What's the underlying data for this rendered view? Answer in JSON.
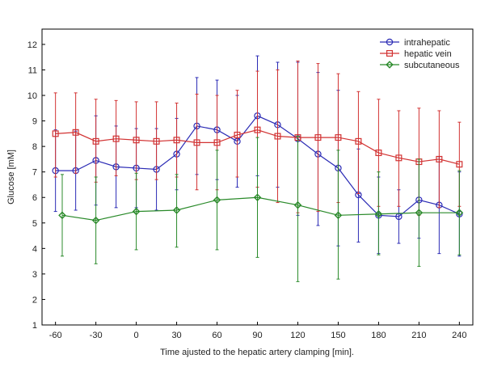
{
  "chart_data": {
    "type": "line",
    "title": "",
    "xlabel": "Time ajusted to the hepatic artery clamping [min].",
    "ylabel": "Glucose [mM]",
    "xlim": [
      -70,
      250
    ],
    "ylim": [
      1,
      12.6
    ],
    "xticks": [
      -60,
      -30,
      0,
      30,
      60,
      90,
      120,
      150,
      180,
      210,
      240
    ],
    "yticks": [
      1,
      2,
      3,
      4,
      5,
      6,
      7,
      8,
      9,
      10,
      11,
      12
    ],
    "grid": false,
    "legend_position": "top-right",
    "series": [
      {
        "name": "intrahepatic",
        "color": "#2b2bb5",
        "marker": "circle",
        "x": [
          -60,
          -45,
          -30,
          -15,
          0,
          15,
          30,
          45,
          60,
          75,
          90,
          105,
          120,
          135,
          150,
          165,
          180,
          195,
          210,
          225,
          240
        ],
        "y": [
          7.05,
          7.05,
          7.45,
          7.2,
          7.15,
          7.1,
          7.7,
          8.8,
          8.65,
          8.2,
          9.2,
          8.85,
          8.3,
          7.7,
          7.15,
          6.1,
          5.3,
          5.25,
          5.9,
          5.7,
          5.35
        ],
        "upper": [
          8.65,
          8.6,
          9.2,
          8.8,
          8.7,
          8.7,
          9.1,
          10.7,
          10.6,
          10.0,
          11.55,
          11.3,
          11.3,
          10.9,
          10.2,
          7.9,
          6.8,
          6.3,
          7.4,
          7.6,
          7.0
        ],
        "lower": [
          5.45,
          5.5,
          5.7,
          5.6,
          5.6,
          5.5,
          6.3,
          6.9,
          6.7,
          6.4,
          6.85,
          6.4,
          5.3,
          4.9,
          4.1,
          4.25,
          3.8,
          4.2,
          4.4,
          3.8,
          3.7
        ]
      },
      {
        "name": "hepatic vein",
        "color": "#d23232",
        "marker": "square",
        "x": [
          -60,
          -45,
          -30,
          -15,
          0,
          15,
          30,
          45,
          60,
          75,
          90,
          105,
          120,
          135,
          150,
          165,
          180,
          195,
          210,
          225,
          240
        ],
        "y": [
          8.5,
          8.55,
          8.2,
          8.3,
          8.25,
          8.2,
          8.25,
          8.15,
          8.15,
          8.45,
          8.65,
          8.4,
          8.35,
          8.35,
          8.35,
          8.2,
          7.75,
          7.55,
          7.4,
          7.5,
          7.3
        ],
        "upper": [
          10.1,
          10.1,
          9.85,
          9.8,
          9.75,
          9.75,
          9.7,
          10.05,
          10.0,
          10.2,
          10.95,
          11.0,
          11.35,
          11.25,
          10.85,
          10.15,
          9.85,
          9.4,
          9.5,
          9.4,
          8.95
        ],
        "lower": [
          6.8,
          6.95,
          6.6,
          6.85,
          6.7,
          6.7,
          6.8,
          6.3,
          6.3,
          6.8,
          6.4,
          5.8,
          5.4,
          5.45,
          5.8,
          6.15,
          5.65,
          5.65,
          5.3,
          5.6,
          5.65
        ]
      },
      {
        "name": "subcutaneous",
        "color": "#2a8a2a",
        "marker": "diamond",
        "x": [
          -55,
          -30,
          0,
          30,
          60,
          90,
          120,
          150,
          180,
          210,
          240
        ],
        "y": [
          5.3,
          5.1,
          5.45,
          5.5,
          5.9,
          6.0,
          5.7,
          5.3,
          5.35,
          5.4,
          5.4
        ],
        "upper": [
          6.9,
          6.8,
          6.95,
          6.9,
          7.85,
          8.35,
          8.4,
          7.85,
          7.0,
          7.5,
          7.05
        ],
        "lower": [
          3.7,
          3.4,
          3.95,
          4.05,
          3.95,
          3.65,
          2.7,
          2.8,
          3.75,
          3.3,
          3.75
        ]
      }
    ]
  }
}
